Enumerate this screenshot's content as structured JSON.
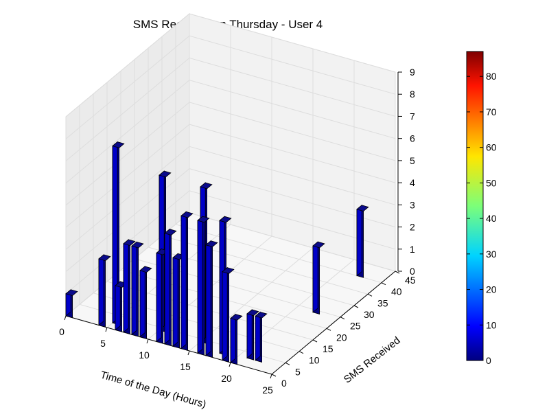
{
  "chart_data": {
    "type": "bar3d",
    "title": "SMS Received on Thursday - User 4",
    "xlabel": "Time of the Day (Hours)",
    "ylabel": "SMS Received",
    "zlabel": "",
    "xlim": [
      0,
      25
    ],
    "ylim": [
      0,
      45
    ],
    "zlim": [
      0,
      9
    ],
    "x_ticks": [
      "0",
      "5",
      "10",
      "15",
      "20",
      "25"
    ],
    "y_ticks": [
      "0",
      "5",
      "10",
      "15",
      "20",
      "25",
      "30",
      "35",
      "40",
      "45"
    ],
    "z_ticks": [
      "0",
      "1",
      "2",
      "3",
      "4",
      "5",
      "6",
      "7",
      "8",
      "9"
    ],
    "grid": true,
    "colormap": "jet",
    "bar_color": "#00007f",
    "colorbar": {
      "ticks": [
        "0",
        "10",
        "20",
        "30",
        "40",
        "50",
        "60",
        "70",
        "80"
      ],
      "min": 0,
      "max": 87
    },
    "bars": [
      {
        "x": 0,
        "y": 0,
        "z": 1
      },
      {
        "x": 4,
        "y": 0,
        "z": 3
      },
      {
        "x": 5,
        "y": 2,
        "z": 8
      },
      {
        "x": 6,
        "y": 0,
        "z": 2
      },
      {
        "x": 7,
        "y": 0,
        "z": 4
      },
      {
        "x": 8,
        "y": 0,
        "z": 4
      },
      {
        "x": 9,
        "y": 0,
        "z": 3
      },
      {
        "x": 10,
        "y": 4,
        "z": 7
      },
      {
        "x": 11,
        "y": 0,
        "z": 4
      },
      {
        "x": 12,
        "y": 0,
        "z": 5
      },
      {
        "x": 13,
        "y": 0,
        "z": 4
      },
      {
        "x": 14,
        "y": 0,
        "z": 6
      },
      {
        "x": 15,
        "y": 4,
        "z": 7
      },
      {
        "x": 16,
        "y": 0,
        "z": 6
      },
      {
        "x": 17,
        "y": 0,
        "z": 5
      },
      {
        "x": 18,
        "y": 2,
        "z": 6
      },
      {
        "x": 19,
        "y": 0,
        "z": 4
      },
      {
        "x": 20,
        "y": 0,
        "z": 2
      },
      {
        "x": 21,
        "y": 3,
        "z": 2
      },
      {
        "x": 22,
        "y": 3,
        "z": 2
      },
      {
        "x": 22,
        "y": 24,
        "z": 3
      },
      {
        "x": 22,
        "y": 40,
        "z": 3
      }
    ]
  }
}
